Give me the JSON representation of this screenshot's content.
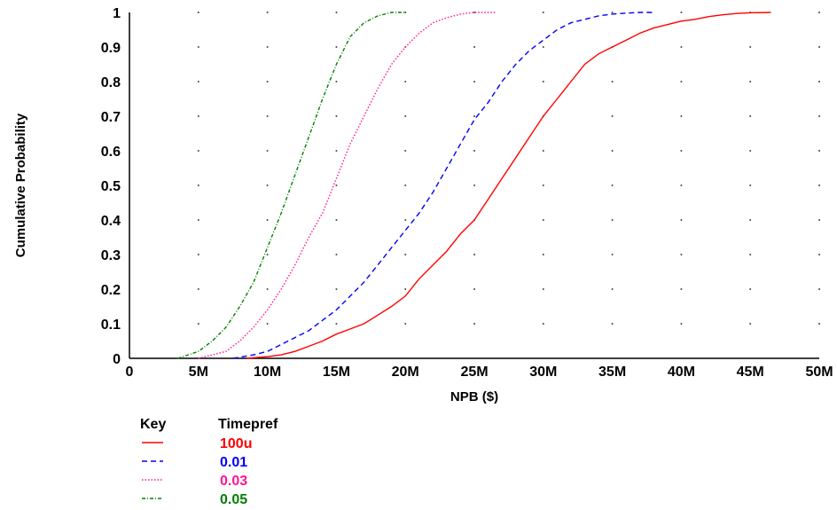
{
  "chart_data": {
    "type": "line",
    "xlabel": "NPB ($)",
    "ylabel": "Cumulative Probability",
    "xlim": [
      0,
      50
    ],
    "ylim": [
      0,
      1
    ],
    "x_ticks": [
      0,
      5,
      10,
      15,
      20,
      25,
      30,
      35,
      40,
      45,
      50
    ],
    "x_tick_labels": [
      "0",
      "5M",
      "10M",
      "15M",
      "20M",
      "25M",
      "30M",
      "35M",
      "40M",
      "45M",
      "50M"
    ],
    "y_ticks": [
      0,
      0.1,
      0.2,
      0.3,
      0.4,
      0.5,
      0.6,
      0.7,
      0.8,
      0.9,
      1
    ],
    "y_tick_labels": [
      "0",
      "0.1",
      "0.2",
      "0.3",
      "0.4",
      "0.5",
      "0.6",
      "0.7",
      "0.8",
      "0.9",
      "1"
    ],
    "grid": "dotted",
    "legend": {
      "position": "bottom-left",
      "key_header": "Key",
      "title": "Timepref"
    },
    "series": [
      {
        "name": "100u",
        "color": "#ff0000",
        "dash": "solid",
        "x": [
          8.5,
          10,
          11,
          12,
          13,
          14,
          15,
          16,
          17,
          18,
          19,
          20,
          21,
          22,
          23,
          24,
          25,
          26,
          27,
          28,
          29,
          30,
          31,
          32,
          33,
          34,
          35,
          36,
          37,
          38,
          39,
          40,
          41,
          42,
          43,
          44,
          45,
          46.5
        ],
        "y": [
          0,
          0.005,
          0.01,
          0.02,
          0.035,
          0.05,
          0.07,
          0.085,
          0.1,
          0.125,
          0.15,
          0.18,
          0.23,
          0.27,
          0.31,
          0.36,
          0.4,
          0.46,
          0.52,
          0.58,
          0.64,
          0.7,
          0.75,
          0.8,
          0.85,
          0.88,
          0.9,
          0.92,
          0.94,
          0.955,
          0.965,
          0.975,
          0.98,
          0.988,
          0.993,
          0.997,
          0.999,
          1
        ]
      },
      {
        "name": "0.01",
        "color": "#0000ff",
        "dash": "dashed",
        "x": [
          7.5,
          9,
          10,
          11,
          12,
          13,
          14,
          15,
          16,
          17,
          18,
          19,
          20,
          21,
          22,
          23,
          24,
          25,
          26,
          27,
          28,
          29,
          30,
          31,
          32,
          33,
          34,
          35,
          36,
          37,
          38
        ],
        "y": [
          0,
          0.01,
          0.02,
          0.04,
          0.06,
          0.08,
          0.11,
          0.14,
          0.18,
          0.22,
          0.27,
          0.32,
          0.37,
          0.42,
          0.48,
          0.55,
          0.62,
          0.69,
          0.74,
          0.8,
          0.85,
          0.89,
          0.92,
          0.95,
          0.97,
          0.98,
          0.99,
          0.995,
          0.998,
          1,
          1
        ]
      },
      {
        "name": "0.03",
        "color": "#ff1493",
        "dash": "dotted",
        "x": [
          5,
          7,
          8,
          9,
          10,
          11,
          12,
          13,
          14,
          15,
          16,
          17,
          18,
          19,
          20,
          21,
          22,
          23,
          24,
          25,
          26.5
        ],
        "y": [
          0,
          0.02,
          0.05,
          0.09,
          0.14,
          0.2,
          0.27,
          0.35,
          0.42,
          0.52,
          0.62,
          0.7,
          0.78,
          0.85,
          0.9,
          0.94,
          0.97,
          0.985,
          0.995,
          1,
          1
        ]
      },
      {
        "name": "0.05",
        "color": "#008000",
        "dash": "dash-dot",
        "x": [
          3.5,
          5,
          6,
          7,
          8,
          9,
          10,
          11,
          12,
          13,
          14,
          15,
          16,
          17,
          18,
          19,
          20
        ],
        "y": [
          0,
          0.02,
          0.05,
          0.09,
          0.15,
          0.22,
          0.32,
          0.42,
          0.53,
          0.64,
          0.75,
          0.85,
          0.93,
          0.97,
          0.99,
          1,
          1
        ]
      }
    ]
  }
}
